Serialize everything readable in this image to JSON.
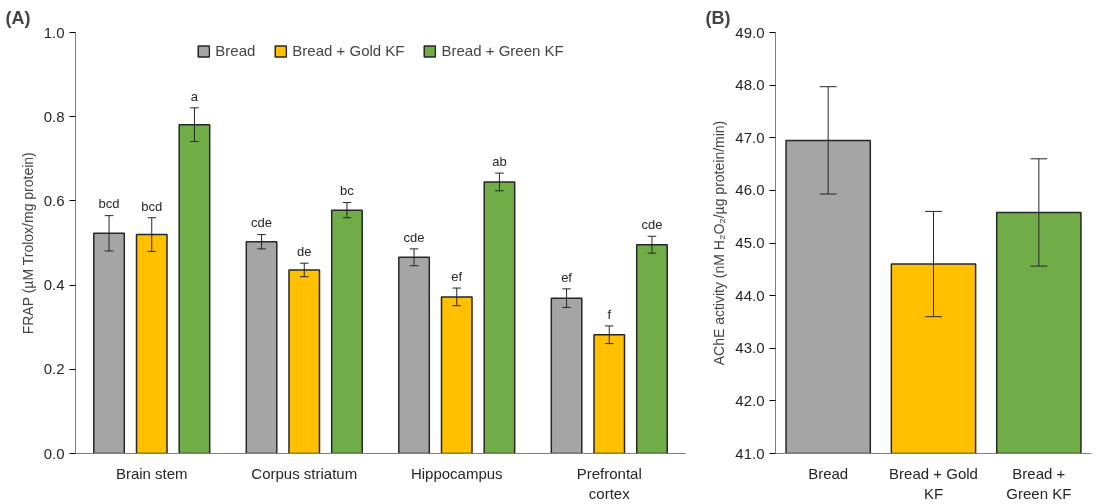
{
  "chart_data": [
    {
      "type": "bar",
      "title": "(A)",
      "ylabel": "FRAP (µM Trolox/mg protein)",
      "categories": [
        "Brain stem",
        "Corpus striatum",
        "Hippocampus",
        "Prefrontal cortex"
      ],
      "series": [
        {
          "name": "Bread",
          "color": "#a5a5a5",
          "values": [
            0.523,
            0.503,
            0.466,
            0.369
          ],
          "errors": [
            0.042,
            0.017,
            0.02,
            0.022
          ],
          "value_labels": [
            "bcd",
            "cde",
            "cde",
            "ef"
          ]
        },
        {
          "name": "Bread + Gold KF",
          "color": "#ffc000",
          "values": [
            0.52,
            0.436,
            0.372,
            0.282
          ],
          "errors": [
            0.04,
            0.016,
            0.021,
            0.021
          ],
          "value_labels": [
            "bcd",
            "de",
            "ef",
            "f"
          ]
        },
        {
          "name": "Bread + Green KF",
          "color": "#70ad47",
          "values": [
            0.781,
            0.578,
            0.645,
            0.496
          ],
          "errors": [
            0.04,
            0.018,
            0.021,
            0.02
          ],
          "value_labels": [
            "a",
            "bc",
            "ab",
            "cde"
          ]
        }
      ],
      "ylim": [
        0,
        1.0
      ],
      "yticks": [
        {
          "value": 0,
          "label": "0.0"
        },
        {
          "value": 0.2,
          "label": "0.2"
        },
        {
          "value": 0.4,
          "label": "0.4"
        },
        {
          "value": 0.6,
          "label": "0.6"
        },
        {
          "value": 0.8,
          "label": "0.8"
        },
        {
          "value": 1.0,
          "label": "1.0"
        }
      ],
      "legend": "top",
      "grid": false
    },
    {
      "type": "bar",
      "title": "(B)",
      "ylabel": "AChE activity (nM H₂O₂/µg protein/min)",
      "categories": [
        "Bread",
        "Bread + Gold KF",
        "Bread + Green KF"
      ],
      "values": [
        46.95,
        44.6,
        45.58
      ],
      "errors": [
        1.02,
        1.0,
        1.02
      ],
      "colors": [
        "#a5a5a5",
        "#ffc000",
        "#70ad47"
      ],
      "ylim": [
        41,
        49
      ],
      "yticks": [
        {
          "value": 41,
          "label": "41.0"
        },
        {
          "value": 42,
          "label": "42.0"
        },
        {
          "value": 43,
          "label": "43.0"
        },
        {
          "value": 44,
          "label": "44.0"
        },
        {
          "value": 45,
          "label": "45.0"
        },
        {
          "value": 46,
          "label": "46.0"
        },
        {
          "value": 47,
          "label": "47.0"
        },
        {
          "value": 48,
          "label": "48.0"
        },
        {
          "value": 49,
          "label": "49.0"
        }
      ],
      "grid": false
    }
  ]
}
